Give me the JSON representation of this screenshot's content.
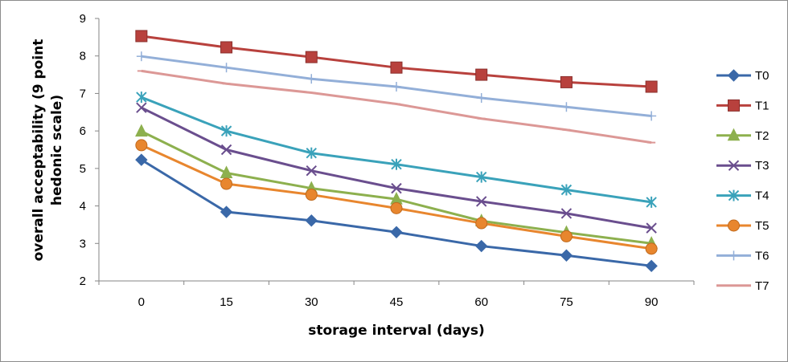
{
  "chart_data": {
    "type": "line",
    "title": "",
    "xlabel": "storage interval (days)",
    "ylabel": "overall acceptability (9 point hedonic scale)",
    "ylabel_lines": [
      "overall acceptability (9 point",
      "hedonic scale)"
    ],
    "x": [
      0,
      15,
      30,
      45,
      60,
      75,
      90
    ],
    "ylim": [
      2,
      9
    ],
    "yticks": [
      2,
      3,
      4,
      5,
      6,
      7,
      8,
      9
    ],
    "grid": false,
    "legend": "right",
    "series": [
      {
        "name": "T0",
        "color": "#3A68A8",
        "marker": "diamond",
        "values": [
          5.23,
          3.84,
          3.61,
          3.3,
          2.93,
          2.68,
          2.4
        ]
      },
      {
        "name": "T1",
        "color": "#B8413D",
        "marker": "square",
        "values": [
          8.53,
          8.23,
          7.97,
          7.69,
          7.5,
          7.3,
          7.18
        ]
      },
      {
        "name": "T2",
        "color": "#8DB04E",
        "marker": "triangle",
        "values": [
          5.99,
          4.88,
          4.47,
          4.18,
          3.6,
          3.29,
          3.0
        ]
      },
      {
        "name": "T3",
        "color": "#6A4E8E",
        "marker": "x",
        "values": [
          6.62,
          5.5,
          4.94,
          4.47,
          4.12,
          3.8,
          3.41
        ]
      },
      {
        "name": "T4",
        "color": "#3AA2BA",
        "marker": "star",
        "values": [
          6.9,
          6.0,
          5.41,
          5.11,
          4.77,
          4.43,
          4.1
        ]
      },
      {
        "name": "T5",
        "color": "#E8862E",
        "marker": "circle",
        "values": [
          5.62,
          4.59,
          4.3,
          3.94,
          3.54,
          3.19,
          2.86
        ]
      },
      {
        "name": "T6",
        "color": "#93AFD8",
        "marker": "plus",
        "values": [
          7.99,
          7.69,
          7.39,
          7.18,
          6.88,
          6.64,
          6.4
        ]
      },
      {
        "name": "T7",
        "color": "#DC9896",
        "marker": "dash",
        "values": [
          7.6,
          7.26,
          7.02,
          6.72,
          6.33,
          6.03,
          5.69
        ]
      }
    ]
  }
}
